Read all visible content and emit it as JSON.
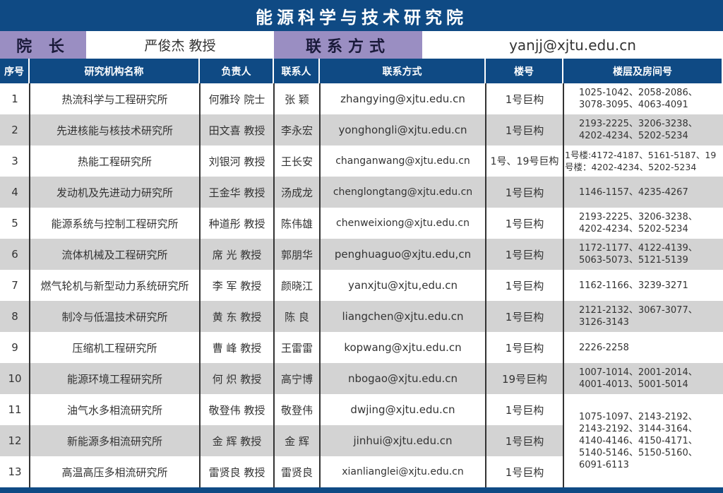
{
  "title": "能源科学与技术研究院",
  "director": {
    "label": "院 长",
    "name": "严俊杰  教授",
    "contact_label": "联系方式",
    "email": "yanjj@xjtu.edu.cn"
  },
  "headers": [
    "序号",
    "研究机构名称",
    "负责人",
    "联系人",
    "联系方式",
    "楼号",
    "楼层及房间号"
  ],
  "rows": [
    {
      "no": "1",
      "name": "热流科学与工程研究所",
      "head": "何雅玲 院士",
      "contact": "张  颖",
      "email": "zhangying@xjtu.edu.cn",
      "building": "1号巨构",
      "rooms": "1025-1042、2058-2086、3078-3095、4063-4091"
    },
    {
      "no": "2",
      "name": "先进核能与核技术研究所",
      "head": "田文喜 教授",
      "contact": "李永宏",
      "email": "yonghongli@xjtu.edu.cn",
      "building": "1号巨构",
      "rooms": "2193-2225、3206-3238、4202-4234、5202-5234"
    },
    {
      "no": "3",
      "name": "热能工程研究所",
      "head": "刘银河 教授",
      "contact": "王长安",
      "email": "changanwang@xjtu.edu.cn",
      "building": "1号、19号巨构",
      "rooms": "1号楼:4172-4187、5161-5187、19号楼：4202-4234、5202-5234"
    },
    {
      "no": "4",
      "name": "发动机及先进动力研究所",
      "head": "王金华 教授",
      "contact": "汤成龙",
      "email": "chenglongtang@xjtu.edu.cn",
      "building": "1号巨构",
      "rooms": "1146-1157、4235-4267"
    },
    {
      "no": "5",
      "name": "能源系统与控制工程研究所",
      "head": "种道彤 教授",
      "contact": "陈伟雄",
      "email": "chenweixiong@xjtu.edu.cn",
      "building": "1号巨构",
      "rooms": "2193-2225、3206-3238、4202-4234、5202-5234"
    },
    {
      "no": "6",
      "name": "流体机械及工程研究所",
      "head": "席  光 教授",
      "contact": "郭朋华",
      "email": "penghuaguo@xjtu.edu,cn",
      "building": "1号巨构",
      "rooms": "1172-1177、4122-4139、5063-5073、5121-5139"
    },
    {
      "no": "7",
      "name": "燃气轮机与新型动力系统研究所",
      "head": "李  军 教授",
      "contact": "颜晓江",
      "email": "yanxjtu@xjtu,edu.cn",
      "building": "1号巨构",
      "rooms": "1162-1166、3239-3271"
    },
    {
      "no": "8",
      "name": "制冷与低温技术研究所",
      "head": "黄  东 教授",
      "contact": "陈  良",
      "email": "liangchen@xjtu.edu.cn",
      "building": "1号巨构",
      "rooms": "2121-2132、3067-3077、3126-3143"
    },
    {
      "no": "9",
      "name": "压缩机工程研究所",
      "head": "曹  峰 教授",
      "contact": "王雷雷",
      "email": "kopwang@xjtu.edu.cn",
      "building": "1号巨构",
      "rooms": "2226-2258"
    },
    {
      "no": "10",
      "name": "能源环境工程研究所",
      "head": "何  炽 教授",
      "contact": "高宁博",
      "email": "nbogao@xjtu.edu.cn",
      "building": "19号巨构",
      "rooms": "1007-1014、2001-2014、4001-4013、5001-5014"
    },
    {
      "no": "11",
      "name": "油气水多相流研究所",
      "head": "敬登伟 教授",
      "contact": "敬登伟",
      "email": "dwjing@xjtu.edu.cn",
      "building": "1号巨构"
    },
    {
      "no": "12",
      "name": "新能源多相流研究所",
      "head": "金  辉 教授",
      "contact": "金  辉",
      "email": "jinhui@xjtu.edu.cn",
      "building": "1号巨构"
    },
    {
      "no": "13",
      "name": "高温高压多相流研究所",
      "head": "雷贤良 教授",
      "contact": "雷贤良",
      "email": "xianlianglei@xjtu.edu.cn",
      "building": "1号巨构"
    }
  ],
  "shared_rooms_11_13": "1075-1097、2143-2192、2143-2192、3144-3164、4140-4146、4150-4171、5140-5146、5150-5160、6091-6113",
  "colors": {
    "header_blue": "#0f4a84",
    "label_purple": "#9a8ec2",
    "stripe_gray": "#d3d3d3"
  }
}
